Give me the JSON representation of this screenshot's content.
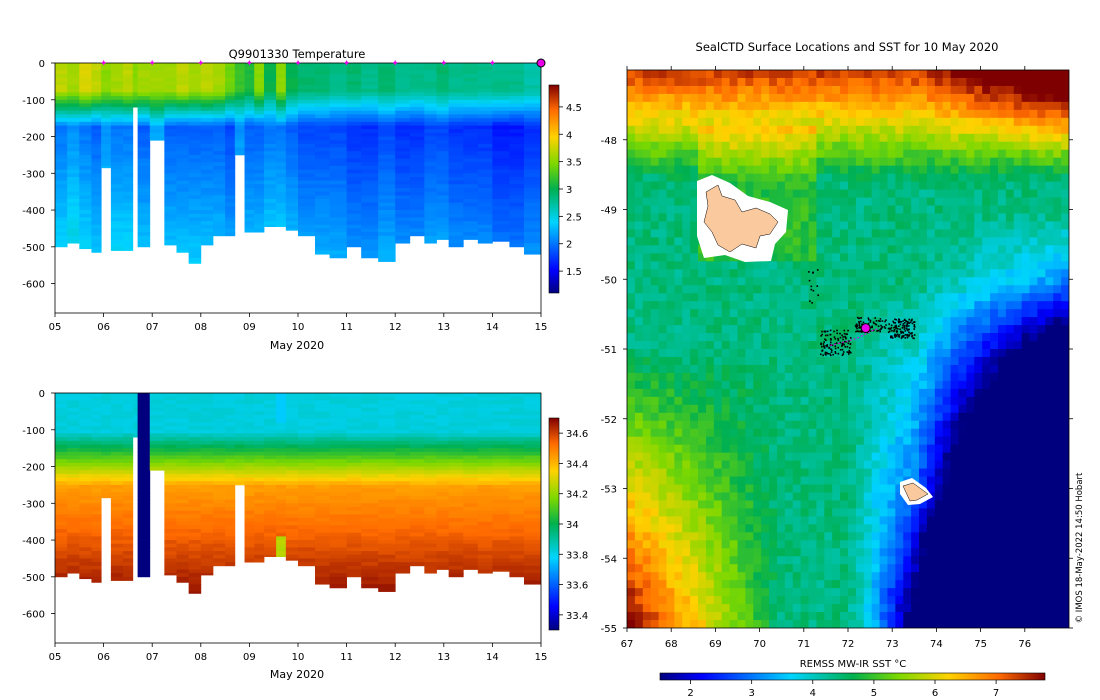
{
  "chart_data": [
    {
      "type": "heatmap",
      "title": "Q9901330  Temperature",
      "xlabel": "May 2020",
      "x_ticks": [
        "05",
        "06",
        "07",
        "08",
        "09",
        "10",
        "11",
        "12",
        "13",
        "14",
        "15"
      ],
      "x_range": [
        5,
        15
      ],
      "y_ticks": [
        0,
        -100,
        -200,
        -300,
        -400,
        -500,
        -600
      ],
      "y_range": [
        -680,
        0
      ],
      "colorbar": {
        "ticks": [
          1.5,
          2,
          2.5,
          3,
          3.5,
          4,
          4.5
        ],
        "range": [
          1.1,
          4.9
        ]
      },
      "surface_markers_day": [
        6,
        7,
        8,
        9,
        10,
        11,
        12,
        13,
        14,
        15
      ],
      "profiles": [
        {
          "day": 5.0,
          "bottom": -500,
          "surface": 3.7,
          "deep": 2.2
        },
        {
          "day": 5.25,
          "bottom": -490,
          "surface": 3.6,
          "deep": 2.3
        },
        {
          "day": 5.5,
          "bottom": -505,
          "surface": 3.8,
          "deep": 2.2
        },
        {
          "day": 5.75,
          "bottom": -515,
          "surface": 3.7,
          "deep": 2.1
        },
        {
          "day": 5.95,
          "bottom": -285,
          "surface": 3.5,
          "deep": 2.3
        },
        {
          "day": 6.15,
          "bottom": -510,
          "surface": 3.6,
          "deep": 2.2
        },
        {
          "day": 6.4,
          "bottom": -510,
          "surface": 3.7,
          "deep": 2.2
        },
        {
          "day": 6.6,
          "bottom": -120,
          "surface": 3.5,
          "deep": 2.4
        },
        {
          "day": 6.7,
          "bottom": -500,
          "surface": 3.6,
          "deep": 2.1
        },
        {
          "day": 6.95,
          "bottom": -210,
          "surface": 3.6,
          "deep": 2.4
        },
        {
          "day": 7.25,
          "bottom": -495,
          "surface": 3.6,
          "deep": 2.1
        },
        {
          "day": 7.5,
          "bottom": -515,
          "surface": 3.7,
          "deep": 2.1
        },
        {
          "day": 7.75,
          "bottom": -545,
          "surface": 3.6,
          "deep": 2.1
        },
        {
          "day": 8.0,
          "bottom": -495,
          "surface": 3.7,
          "deep": 2.1
        },
        {
          "day": 8.25,
          "bottom": -470,
          "surface": 3.6,
          "deep": 2.1
        },
        {
          "day": 8.5,
          "bottom": -470,
          "surface": 3.4,
          "deep": 2.0
        },
        {
          "day": 8.7,
          "bottom": -250,
          "surface": 3.2,
          "deep": 2.3
        },
        {
          "day": 8.9,
          "bottom": -460,
          "surface": 3.1,
          "deep": 2.1
        },
        {
          "day": 9.1,
          "bottom": -460,
          "surface": 3.5,
          "deep": 2.1
        },
        {
          "day": 9.3,
          "bottom": -445,
          "surface": 3.0,
          "deep": 2.2
        },
        {
          "day": 9.55,
          "bottom": -445,
          "surface": 3.5,
          "deep": 2.2
        },
        {
          "day": 9.75,
          "bottom": -455,
          "surface": 3.0,
          "deep": 2.1
        },
        {
          "day": 10.0,
          "bottom": -470,
          "surface": 2.9,
          "deep": 2.0
        },
        {
          "day": 10.35,
          "bottom": -520,
          "surface": 2.9,
          "deep": 2.0
        },
        {
          "day": 10.65,
          "bottom": -530,
          "surface": 2.8,
          "deep": 2.0
        },
        {
          "day": 11.0,
          "bottom": -500,
          "surface": 2.9,
          "deep": 1.9
        },
        {
          "day": 11.3,
          "bottom": -530,
          "surface": 2.8,
          "deep": 1.9
        },
        {
          "day": 11.65,
          "bottom": -540,
          "surface": 2.9,
          "deep": 2.0
        },
        {
          "day": 12.0,
          "bottom": -490,
          "surface": 2.8,
          "deep": 1.9
        },
        {
          "day": 12.3,
          "bottom": -470,
          "surface": 2.8,
          "deep": 1.9
        },
        {
          "day": 12.6,
          "bottom": -490,
          "surface": 2.8,
          "deep": 2.0
        },
        {
          "day": 12.85,
          "bottom": -480,
          "surface": 2.9,
          "deep": 2.0
        },
        {
          "day": 13.1,
          "bottom": -500,
          "surface": 2.8,
          "deep": 1.9
        },
        {
          "day": 13.4,
          "bottom": -480,
          "surface": 2.8,
          "deep": 1.9
        },
        {
          "day": 13.7,
          "bottom": -490,
          "surface": 2.8,
          "deep": 1.9
        },
        {
          "day": 14.0,
          "bottom": -485,
          "surface": 2.8,
          "deep": 1.8
        },
        {
          "day": 14.35,
          "bottom": -500,
          "surface": 2.8,
          "deep": 1.8
        },
        {
          "day": 14.65,
          "bottom": -520,
          "surface": 2.7,
          "deep": 1.9
        }
      ],
      "profile_end": 15.0,
      "last_marker": {
        "day": 15.0,
        "depth": 0
      }
    },
    {
      "type": "heatmap",
      "title": "",
      "xlabel": "May 2020",
      "x_ticks": [
        "05",
        "06",
        "07",
        "08",
        "09",
        "10",
        "11",
        "12",
        "13",
        "14",
        "15"
      ],
      "x_range": [
        5,
        15
      ],
      "y_ticks": [
        0,
        -100,
        -200,
        -300,
        -400,
        -500,
        -600
      ],
      "y_range": [
        -680,
        0
      ],
      "colorbar": {
        "ticks": [
          33.4,
          33.6,
          33.8,
          34,
          34.2,
          34.4,
          34.6
        ],
        "range": [
          33.3,
          34.7
        ]
      }
    },
    {
      "type": "heatmap",
      "title": "SealCTD Surface Locations and SST for 10 May 2020",
      "x_ticks": [
        "67",
        "68",
        "69",
        "70",
        "71",
        "72",
        "73",
        "74",
        "75",
        "76"
      ],
      "x_range": [
        67,
        77
      ],
      "y_ticks": [
        "-48",
        "-49",
        "-50",
        "-51",
        "-52",
        "-53",
        "-54",
        "-55"
      ],
      "y_range": [
        -55,
        -47
      ],
      "colorbar": {
        "label": "REMSS MW-IR SST °C",
        "ticks": [
          2,
          3,
          4,
          5,
          6,
          7
        ],
        "range": [
          1.5,
          7.8
        ]
      },
      "current_position": {
        "lon": 72.4,
        "lat": -50.7
      },
      "credit": "© IMOS 18-May-2022 14:50 Hobart"
    }
  ]
}
